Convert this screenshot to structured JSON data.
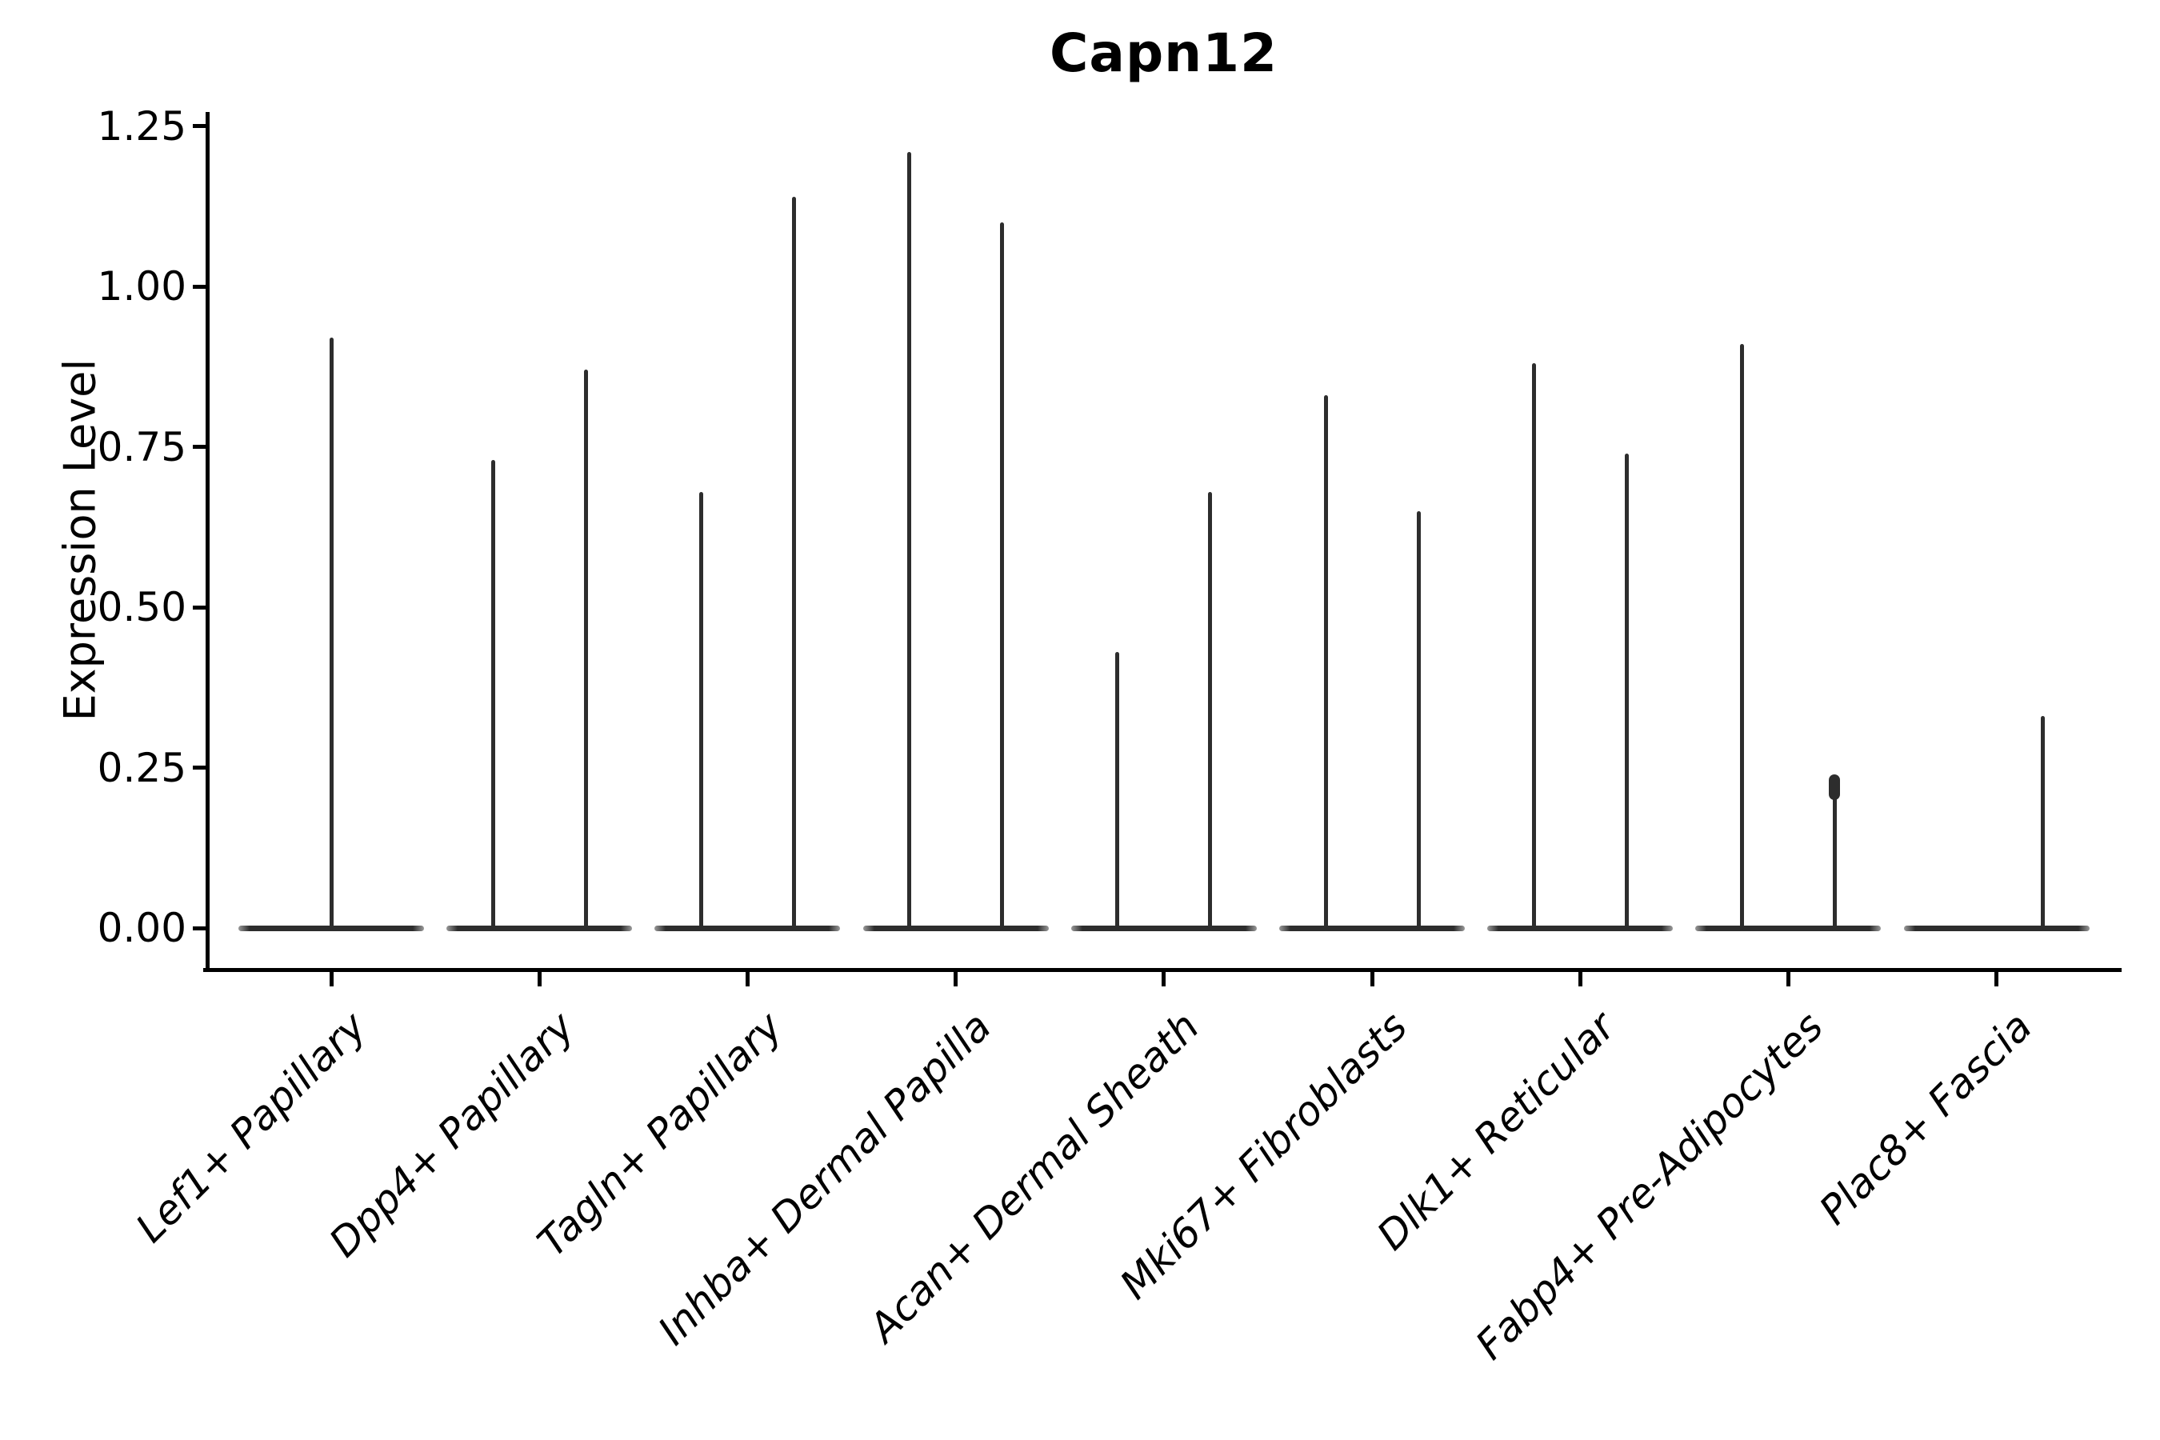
{
  "chart_data": {
    "type": "violin",
    "title": "Capn12",
    "xlabel": "",
    "ylabel": "Expression Level",
    "ytick_labels": [
      "0.00",
      "0.25",
      "0.50",
      "0.75",
      "1.00",
      "1.25"
    ],
    "yticks": [
      0.0,
      0.25,
      0.5,
      0.75,
      1.0,
      1.25
    ],
    "ylim": [
      -0.06,
      1.33
    ],
    "grid": false,
    "legend": "none",
    "categories": [
      "Lef1+ Papillary",
      "Dpp4+ Papillary",
      "Tagln+ Papillary",
      "Inhba+ Dermal Papilla",
      "Acan+ Dermal Sheath",
      "Mki67+ Fibroblasts",
      "Dlk1+ Reticular",
      "Fabp4+ Pre-Adipocytes",
      "Plac8+ Fascia"
    ],
    "violins": [
      {
        "category": "Lef1+ Papillary",
        "base_at_zero": true,
        "spikes": [
          {
            "pos": "center",
            "value": 0.92
          }
        ]
      },
      {
        "category": "Dpp4+ Papillary",
        "base_at_zero": true,
        "spikes": [
          {
            "pos": "left",
            "value": 0.73
          },
          {
            "pos": "right",
            "value": 0.87
          }
        ]
      },
      {
        "category": "Tagln+ Papillary",
        "base_at_zero": true,
        "spikes": [
          {
            "pos": "left",
            "value": 0.68
          },
          {
            "pos": "right",
            "value": 1.14
          }
        ]
      },
      {
        "category": "Inhba+ Dermal Papilla",
        "base_at_zero": true,
        "spikes": [
          {
            "pos": "left",
            "value": 1.21
          },
          {
            "pos": "right",
            "value": 1.1
          }
        ]
      },
      {
        "category": "Acan+ Dermal Sheath",
        "base_at_zero": true,
        "spikes": [
          {
            "pos": "left",
            "value": 0.43
          },
          {
            "pos": "right",
            "value": 0.68
          }
        ]
      },
      {
        "category": "Mki67+ Fibroblasts",
        "base_at_zero": true,
        "spikes": [
          {
            "pos": "left",
            "value": 0.83
          },
          {
            "pos": "right",
            "value": 0.65
          }
        ]
      },
      {
        "category": "Dlk1+ Reticular",
        "base_at_zero": true,
        "spikes": [
          {
            "pos": "left",
            "value": 0.88
          },
          {
            "pos": "right",
            "value": 0.74
          }
        ]
      },
      {
        "category": "Fabp4+ Pre-Adipocytes",
        "base_at_zero": true,
        "spikes": [
          {
            "pos": "left",
            "value": 0.91
          },
          {
            "pos": "right",
            "value": 0.22,
            "knob": true
          }
        ]
      },
      {
        "category": "Plac8+ Fascia",
        "base_at_zero": true,
        "spikes": [
          {
            "pos": "right",
            "value": 0.33
          }
        ]
      }
    ],
    "colors": {
      "violin_line": "#2d2d2d",
      "spine": "#000000",
      "text": "#000000",
      "background": "#ffffff"
    }
  }
}
